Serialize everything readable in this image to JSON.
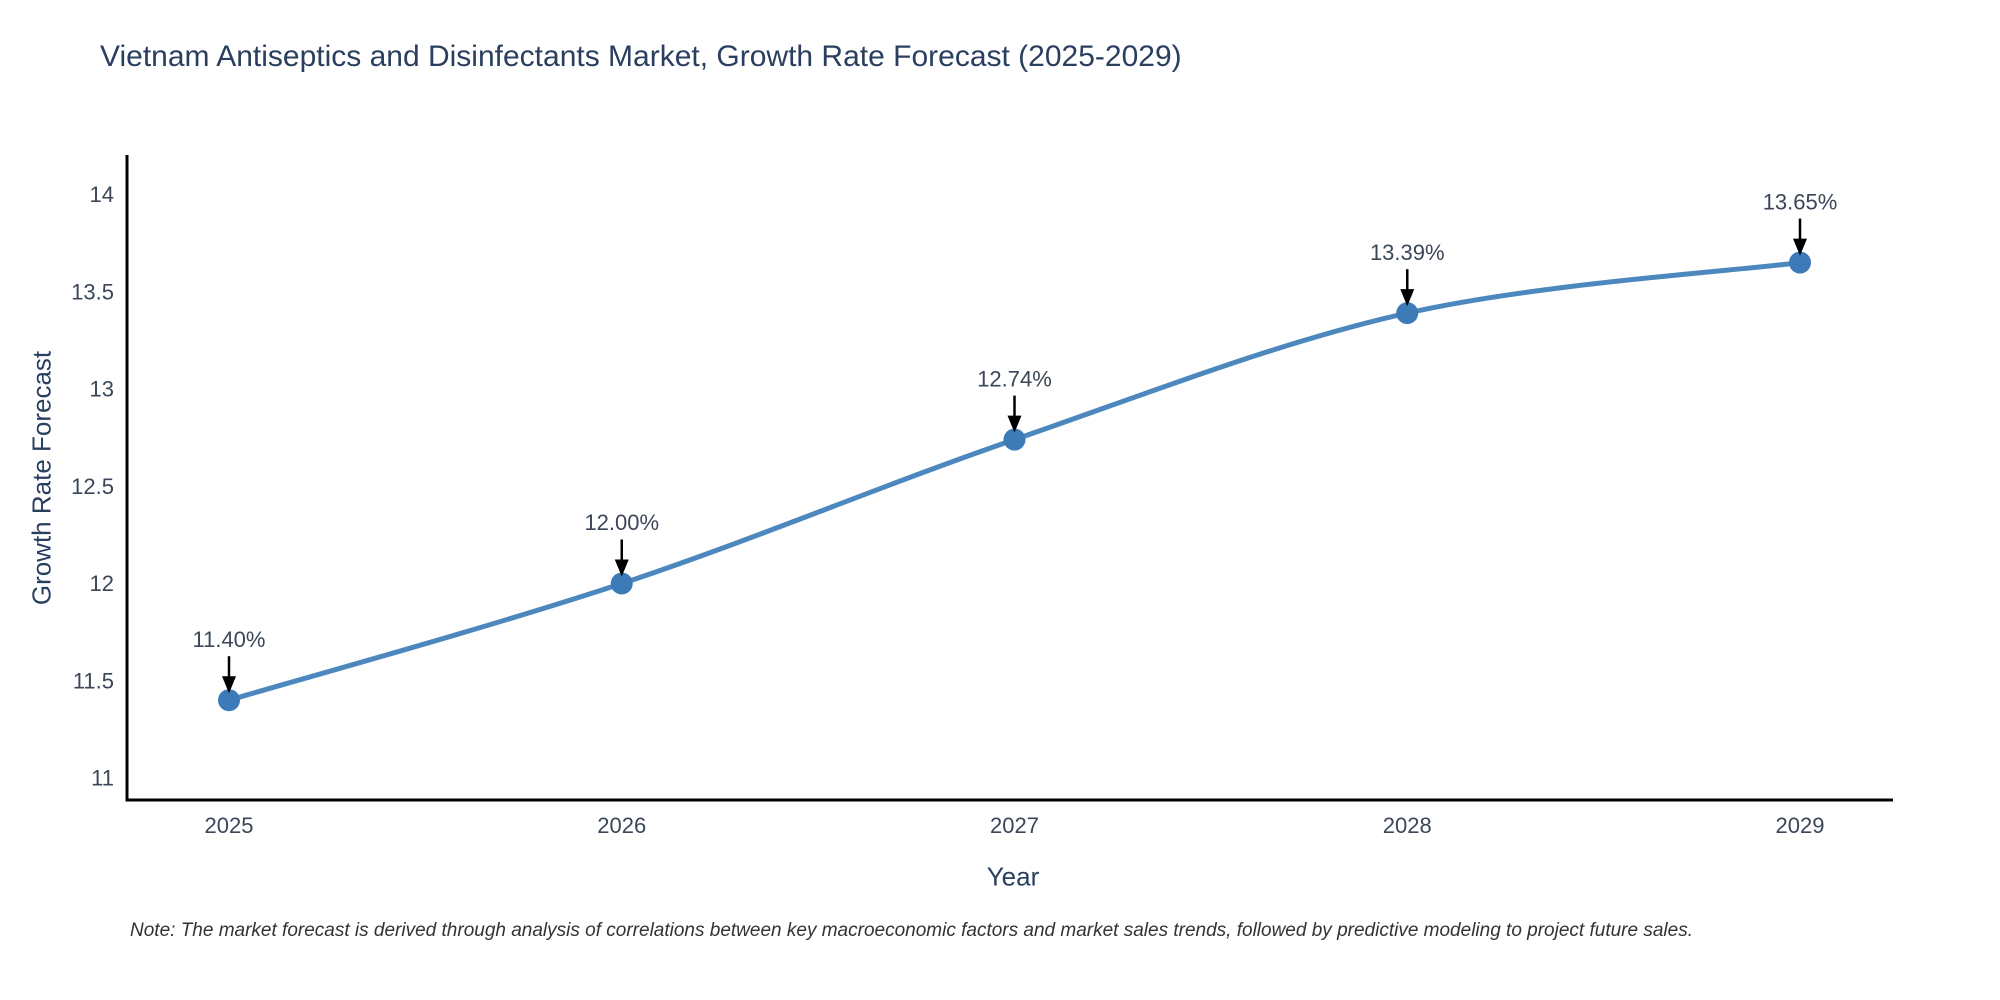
{
  "note": "Note: The market forecast is derived through analysis of correlations between key macroeconomic factors and market sales trends, followed by predictive modeling to project future sales.",
  "chart_data": {
    "type": "line",
    "title": "Vietnam Antiseptics and Disinfectants Market, Growth Rate Forecast (2025-2029)",
    "xlabel": "Year",
    "ylabel": "Growth Rate Forecast",
    "x": [
      2025,
      2026,
      2027,
      2028,
      2029
    ],
    "x_tick_labels": [
      "2025",
      "2026",
      "2027",
      "2028",
      "2029"
    ],
    "series": [
      {
        "name": "Growth Rate Forecast",
        "values": [
          11.4,
          12.0,
          12.74,
          13.39,
          13.65
        ],
        "point_labels": [
          "11.40%",
          "12.00%",
          "12.74%",
          "13.39%",
          "13.65%"
        ]
      }
    ],
    "yticks": [
      11,
      11.5,
      12,
      12.5,
      13,
      13.5,
      14
    ],
    "ytick_labels": [
      "11",
      "11.5",
      "12",
      "12.5",
      "13",
      "13.5",
      "14"
    ],
    "ylim": [
      10.89,
      14.2
    ],
    "grid": false,
    "legend": false,
    "line_shape": "spline",
    "point_annotations_have_arrows": true,
    "colors": {
      "line": "#4c88be",
      "marker": "#3d7ab8",
      "axis": "#000000",
      "arrow": "#000000",
      "title_text": "#2a3f5f",
      "tick_text": "#3b4758",
      "note_text": "#333333"
    }
  }
}
